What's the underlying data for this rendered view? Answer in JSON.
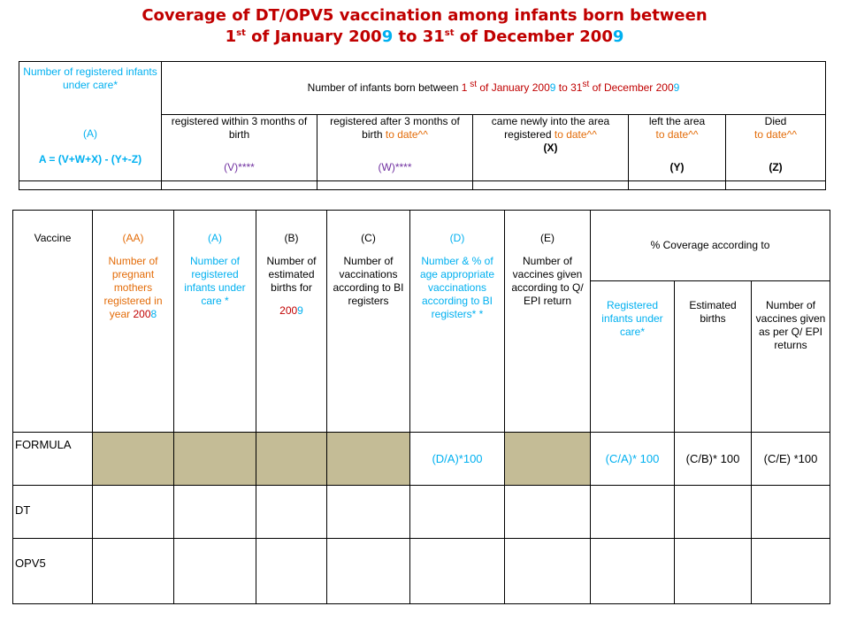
{
  "title": {
    "line1": "Coverage of DT/OPV5 vaccination among infants born between",
    "line2_a": "1",
    "line2_sup1": "st",
    "line2_b": " of January  200",
    "line2_c": "9",
    "line2_d": " to 31",
    "line2_sup2": "st",
    "line2_e": " of December 200",
    "line2_f": "9"
  },
  "top_table": {
    "lead": {
      "label": "Number of  registered infants under care*",
      "code": "(A)",
      "formula": "A = (V+W+X) - (Y+-Z)"
    },
    "header": {
      "a": "Number of infants born between ",
      "b": "1",
      "sup1": " st",
      "c": " of  January  200",
      "d": "9",
      "e": "  to 31",
      "sup2": "st",
      "f": " of  December 200",
      "g": "9"
    },
    "cols": [
      {
        "label_a": "registered within 3 months of birth",
        "label_b": "",
        "code": "(V)****"
      },
      {
        "label_a": "registered after 3 months of birth ",
        "label_b": "to date^^",
        "code": "(W)****"
      },
      {
        "label_a": "came newly into the area registered  ",
        "label_b": "to date^^",
        "code": "(X)"
      },
      {
        "label_a": "left the area",
        "label_b": "to date^^",
        "code": "(Y)"
      },
      {
        "label_a": "Died",
        "label_b": "to date^^",
        "code": "(Z)"
      }
    ]
  },
  "bottom_table": {
    "col_vaccine": "Vaccine",
    "col_aa": {
      "code": "(AA)",
      "label": "Number of pregnant mothers registered in year ",
      "year_a": "200",
      "year_b": "8"
    },
    "col_a": {
      "code": "(A)",
      "label": "Number of registered infants under care *"
    },
    "col_b": {
      "code": "(B)",
      "label": "Number of estimated births for",
      "year_a": "200",
      "year_b": "9"
    },
    "col_c": {
      "code": "(C)",
      "label": "Number of vaccinations according to BI registers"
    },
    "col_d": {
      "code": "(D)",
      "label": "Number  & % of age appropriate vaccinations according to BI registers* *"
    },
    "col_e": {
      "code": "(E)",
      "label": "Number of vaccines given according to Q/ EPI return"
    },
    "coverage_header": "% Coverage according to",
    "coverage_cols": [
      "Registered infants under care*",
      "Estimated births",
      "Number of vaccines given as per Q/ EPI returns"
    ],
    "formula_row": {
      "label": "FORMULA",
      "d": "(D/A)*100",
      "cov1": "(C/A)* 100",
      "cov2": "(C/B)* 100",
      "cov3": "(C/E) *100"
    },
    "rows": [
      "DT",
      "OPV5"
    ]
  },
  "colors": {
    "title": "#c00000",
    "highlight_blue": "#00b0f0",
    "orange": "#e36c09",
    "purple": "#7030a0",
    "tan_fill": "#c4bc96"
  }
}
